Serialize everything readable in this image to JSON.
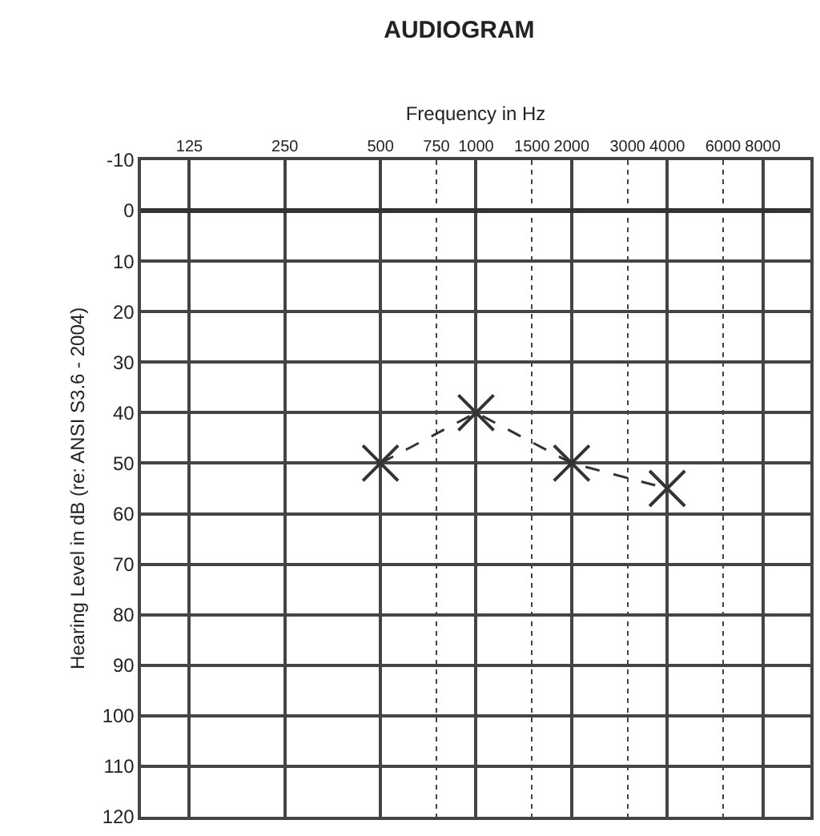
{
  "chart_data": {
    "type": "line",
    "title": "AUDIOGRAM",
    "xlabel": "Frequency in Hz",
    "ylabel": "Hearing Level in dB (re: ANSI S3.6 - 2004)",
    "x": [
      500,
      1000,
      2000,
      4000
    ],
    "series": [
      {
        "color": "#333333",
        "values": [
          50,
          40,
          50,
          55
        ]
      }
    ],
    "log": "x",
    "xlim": [
      88,
      11300
    ],
    "xticks": [
      125,
      250,
      500,
      750,
      1000,
      1500,
      2000,
      3000,
      4000,
      6000,
      8000
    ],
    "ylim": [
      120,
      -10
    ],
    "yticks": [
      -10,
      0,
      10,
      20,
      30,
      40,
      50,
      60,
      70,
      80,
      90,
      100,
      110,
      120
    ],
    "grid": true,
    "marker": "cross",
    "line_style": "dashed"
  }
}
